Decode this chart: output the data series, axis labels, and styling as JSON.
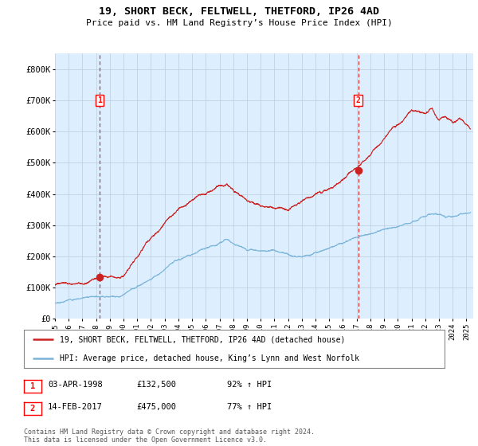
{
  "title": "19, SHORT BECK, FELTWELL, THETFORD, IP26 4AD",
  "subtitle": "Price paid vs. HM Land Registry’s House Price Index (HPI)",
  "ylim": [
    0,
    850000
  ],
  "yticks": [
    0,
    100000,
    200000,
    300000,
    400000,
    500000,
    600000,
    700000,
    800000
  ],
  "ytick_labels": [
    "£0",
    "£100K",
    "£200K",
    "£300K",
    "£400K",
    "£500K",
    "£600K",
    "£700K",
    "£800K"
  ],
  "xlim_start": 1995.0,
  "xlim_end": 2025.5,
  "xticks": [
    1995,
    1996,
    1997,
    1998,
    1999,
    2000,
    2001,
    2002,
    2003,
    2004,
    2005,
    2006,
    2007,
    2008,
    2009,
    2010,
    2011,
    2012,
    2013,
    2014,
    2015,
    2016,
    2017,
    2018,
    2019,
    2020,
    2021,
    2022,
    2023,
    2024,
    2025
  ],
  "hpi_color": "#7ab4d8",
  "price_color": "#cc2222",
  "vline_color": "#cc2222",
  "bg_fill_color": "#ddeeff",
  "sale1_x": 1998.25,
  "sale1_y": 132500,
  "sale2_x": 2017.12,
  "sale2_y": 475000,
  "legend_line1": "19, SHORT BECK, FELTWELL, THETFORD, IP26 4AD (detached house)",
  "legend_line2": "HPI: Average price, detached house, King’s Lynn and West Norfolk",
  "annotation1_date": "03-APR-1998",
  "annotation1_price": "£132,500",
  "annotation1_hpi": "92% ↑ HPI",
  "annotation2_date": "14-FEB-2017",
  "annotation2_price": "£475,000",
  "annotation2_hpi": "77% ↑ HPI",
  "footer": "Contains HM Land Registry data © Crown copyright and database right 2024.\nThis data is licensed under the Open Government Licence v3.0.",
  "background_color": "#ffffff",
  "grid_color": "#bbccdd"
}
